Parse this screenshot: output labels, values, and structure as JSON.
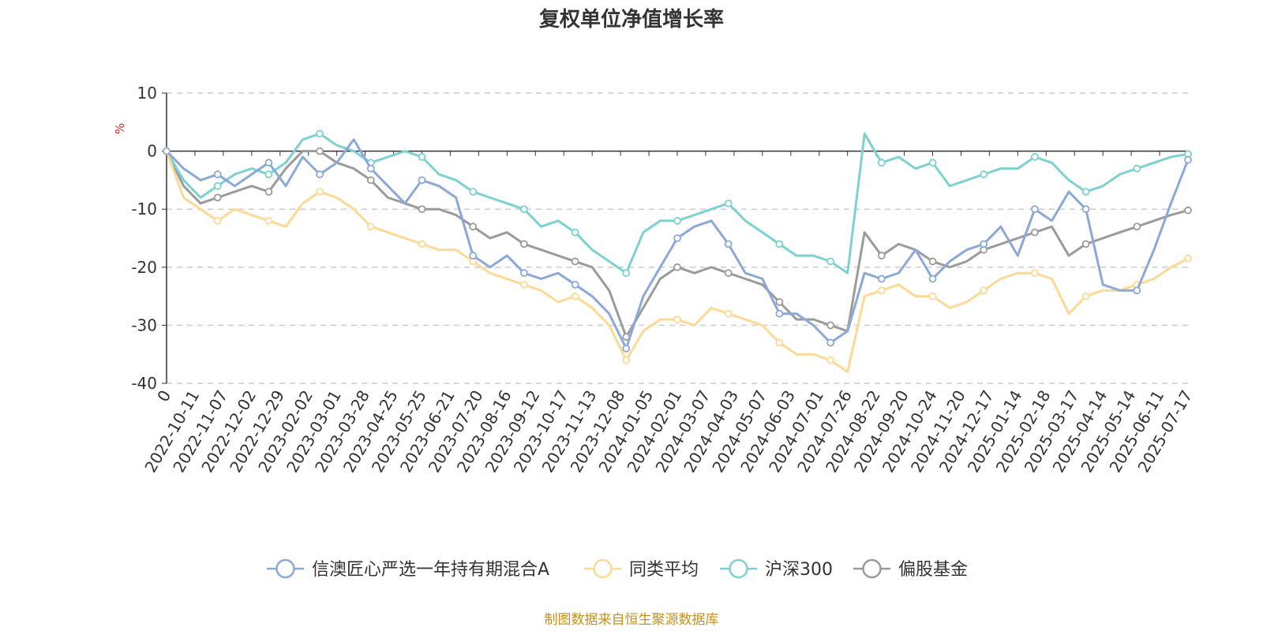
{
  "chart_data": {
    "type": "line",
    "title": "复权单位净值增长率",
    "ylabel": "%",
    "ylim": [
      -40,
      10
    ],
    "y_ticks": [
      "10",
      "0",
      "-10",
      "-20",
      "-30",
      "-40"
    ],
    "x_tick_labels": [
      "0",
      "2022-10-11",
      "2022-11-07",
      "2022-12-02",
      "2022-12-29",
      "2023-02-02",
      "2023-03-01",
      "2023-03-28",
      "2023-04-25",
      "2023-05-25",
      "2023-06-21",
      "2023-07-20",
      "2023-08-16",
      "2023-09-12",
      "2023-10-17",
      "2023-11-13",
      "2023-12-08",
      "2024-01-05",
      "2024-02-01",
      "2024-03-07",
      "2024-04-03",
      "2024-05-07",
      "2024-06-03",
      "2024-07-01",
      "2024-07-26",
      "2024-08-22",
      "2024-09-20",
      "2024-10-24",
      "2024-11-20",
      "2024-12-17",
      "2025-01-14",
      "2025-02-18",
      "2025-03-17",
      "2025-04-14",
      "2025-05-14",
      "2025-06-11",
      "2025-07-17"
    ],
    "grid": true,
    "legend_position": "bottom",
    "series": [
      {
        "name": "信澳匠心严选一年持有期混合A",
        "color": "#8ba9d8",
        "values": [
          0,
          -3,
          -5,
          -4,
          -6,
          -4,
          -2,
          -6,
          -1,
          -4,
          -2,
          2,
          -3,
          -6,
          -9,
          -5,
          -6,
          -8,
          -18,
          -20,
          -18,
          -21,
          -22,
          -21,
          -23,
          -25,
          -28,
          -34,
          -25,
          -20,
          -15,
          -13,
          -12,
          -16,
          -21,
          -22,
          -28,
          -28,
          -30,
          -33,
          -31,
          -21,
          -22,
          -21,
          -17,
          -22,
          -19,
          -17,
          -16,
          -13,
          -18,
          -10,
          -12,
          -7,
          -10,
          -23,
          -24,
          -24,
          -17,
          -9,
          -1.5
        ]
      },
      {
        "name": "同类平均",
        "color": "#fdd995",
        "values": [
          0,
          -8,
          -10,
          -12,
          -10,
          -11,
          -12,
          -13,
          -9,
          -7,
          -8,
          -10,
          -13,
          -14,
          -15,
          -16,
          -17,
          -17,
          -19,
          -21,
          -22,
          -23,
          -24,
          -26,
          -25,
          -27,
          -30,
          -36,
          -31,
          -29,
          -29,
          -30,
          -27,
          -28,
          -29,
          -30,
          -33,
          -35,
          -35,
          -36,
          -38,
          -25,
          -24,
          -23,
          -25,
          -25,
          -27,
          -26,
          -24,
          -22,
          -21,
          -21,
          -22,
          -28,
          -25,
          -24,
          -24,
          -23,
          -22,
          -20,
          -18.5
        ]
      },
      {
        "name": "沪深300",
        "color": "#7dd1d1",
        "values": [
          0,
          -5,
          -8,
          -6,
          -4,
          -3,
          -4,
          -2,
          2,
          3,
          1,
          0,
          -2,
          -1,
          0,
          -1,
          -4,
          -5,
          -7,
          -8,
          -9,
          -10,
          -13,
          -12,
          -14,
          -17,
          -19,
          -21,
          -14,
          -12,
          -12,
          -11,
          -10,
          -9,
          -12,
          -14,
          -16,
          -18,
          -18,
          -19,
          -21,
          3,
          -2,
          -1,
          -3,
          -2,
          -6,
          -5,
          -4,
          -3,
          -3,
          -1,
          -2,
          -5,
          -7,
          -6,
          -4,
          -3,
          -2,
          -1,
          -0.5
        ]
      },
      {
        "name": "偏股基金",
        "color": "#9b9b9b",
        "values": [
          0,
          -6,
          -9,
          -8,
          -7,
          -6,
          -7,
          -3,
          0,
          0,
          -2,
          -3,
          -5,
          -8,
          -9,
          -10,
          -10,
          -11,
          -13,
          -15,
          -14,
          -16,
          -17,
          -18,
          -19,
          -20,
          -24,
          -32,
          -27,
          -22,
          -20,
          -21,
          -20,
          -21,
          -22,
          -23,
          -26,
          -29,
          -29,
          -30,
          -31,
          -14,
          -18,
          -16,
          -17,
          -19,
          -20,
          -19,
          -17,
          -16,
          -15,
          -14,
          -13,
          -18,
          -16,
          -15,
          -14,
          -13,
          -12,
          -11,
          -10.2
        ]
      }
    ]
  },
  "legend": [
    "信澳匠心严选一年持有期混合A",
    "同类平均",
    "沪深300",
    "偏股基金"
  ],
  "source_text": "制图数据来自恒生聚源数据库"
}
